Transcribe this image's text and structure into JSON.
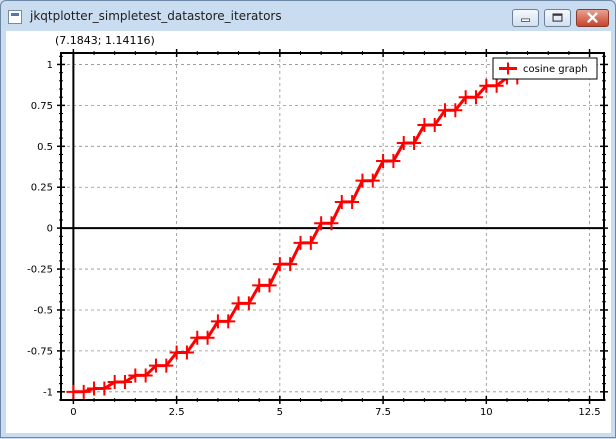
{
  "window": {
    "title": "jkqtplotter_simpletest_datastore_iterators",
    "icons": [
      "app-icon",
      "minimize-icon",
      "maximize-icon",
      "close-icon"
    ]
  },
  "plot": {
    "coordinate_readout": "(7.1843; 1.14116)"
  },
  "colors": {
    "series": "#ff0000",
    "grid": "#909090",
    "axis": "#000000"
  },
  "chart_data": {
    "type": "line",
    "title": "",
    "xlabel": "",
    "ylabel": "",
    "xlim": [
      -0.3,
      12.85
    ],
    "ylim": [
      -1.05,
      1.07
    ],
    "xticks": [
      0,
      2.5,
      5,
      7.5,
      10,
      12.5
    ],
    "xtick_labels": [
      "0",
      "2.5",
      "5",
      "7.5",
      "10",
      "12.5"
    ],
    "yticks": [
      1,
      0.75,
      0.5,
      0.25,
      0,
      -0.25,
      -0.5,
      -0.75,
      -1
    ],
    "ytick_labels": [
      "1",
      "0.75",
      "0.5",
      "0.25",
      "0",
      "-0.25",
      "-0.5",
      "-0.75",
      "-1"
    ],
    "grid": true,
    "legend_position": "top-right",
    "series": [
      {
        "name": "cosine graph",
        "marker": "plus",
        "x": [
          0.0,
          0.25,
          0.5,
          0.75,
          1.0,
          1.25,
          1.5,
          1.75,
          2.0,
          2.25,
          2.5,
          2.75,
          3.0,
          3.25,
          3.5,
          3.75,
          4.0,
          4.25,
          4.5,
          4.75,
          5.0,
          5.25,
          5.5,
          5.75,
          6.0,
          6.25,
          6.5,
          6.75,
          7.0,
          7.25,
          7.5,
          7.75,
          8.0,
          8.25,
          8.5,
          8.75,
          9.0,
          9.25,
          9.5,
          9.75,
          10.0,
          10.25,
          10.5,
          10.75,
          11.0,
          11.25,
          11.5,
          11.75,
          12.0,
          12.25,
          12.5
        ],
        "y": [
          -1.0,
          -1.0,
          -0.98,
          -0.98,
          -0.94,
          -0.94,
          -0.9,
          -0.9,
          -0.84,
          -0.84,
          -0.76,
          -0.76,
          -0.67,
          -0.67,
          -0.57,
          -0.57,
          -0.46,
          -0.46,
          -0.35,
          -0.35,
          -0.22,
          -0.22,
          -0.09,
          -0.09,
          0.03,
          0.03,
          0.16,
          0.16,
          0.29,
          0.29,
          0.41,
          0.41,
          0.52,
          0.52,
          0.63,
          0.63,
          0.72,
          0.72,
          0.8,
          0.8,
          0.87,
          0.87,
          0.92,
          0.92,
          0.96,
          0.96,
          0.98,
          0.98,
          1.0,
          1.0,
          1.0
        ]
      }
    ]
  }
}
